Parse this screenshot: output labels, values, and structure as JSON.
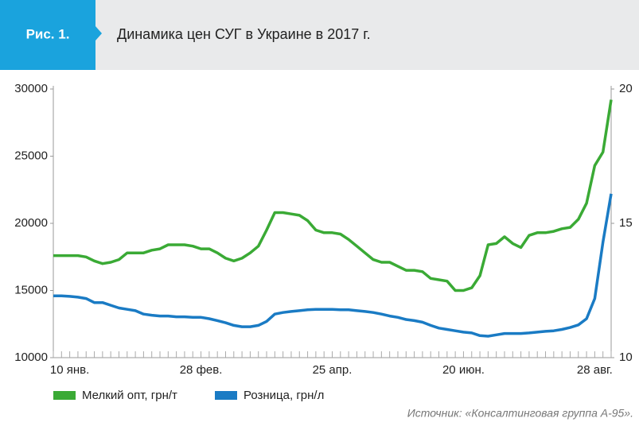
{
  "chart_data": {
    "type": "line",
    "figure_label": "Рис. 1.",
    "title": "Динамика цен СУГ в Украине в 2017 г.",
    "source": "Источник: «Консалтинговая группа А-95».",
    "categories": [
      null,
      null,
      "10 янв.",
      null,
      null,
      null,
      null,
      null,
      null,
      null,
      null,
      null,
      null,
      null,
      null,
      null,
      null,
      null,
      "28 фев.",
      null,
      null,
      null,
      null,
      null,
      null,
      null,
      null,
      null,
      null,
      null,
      null,
      null,
      null,
      null,
      "25 апр.",
      null,
      null,
      null,
      null,
      null,
      null,
      null,
      null,
      null,
      null,
      null,
      null,
      null,
      null,
      null,
      "20 июн.",
      null,
      null,
      null,
      null,
      null,
      null,
      null,
      null,
      null,
      null,
      null,
      null,
      null,
      null,
      null,
      "28 авг.",
      null,
      null
    ],
    "series": [
      {
        "name": "Мелкий опт, грн/т",
        "color": "#3aaa35",
        "axis": "y",
        "values": [
          17600,
          17600,
          17600,
          17600,
          17500,
          17200,
          17000,
          17100,
          17300,
          17800,
          17800,
          17800,
          18000,
          18100,
          18400,
          18400,
          18400,
          18300,
          18100,
          18100,
          17800,
          17400,
          17200,
          17400,
          17800,
          18300,
          19500,
          20800,
          20800,
          20700,
          20600,
          20200,
          19500,
          19300,
          19300,
          19200,
          18800,
          18300,
          17800,
          17300,
          17100,
          17100,
          16800,
          16500,
          16500,
          16400,
          15900,
          15800,
          15700,
          15000,
          15000,
          15200,
          16100,
          18400,
          18500,
          19000,
          18500,
          18200,
          19100,
          19300,
          19300,
          19400,
          19600,
          19700,
          20300,
          21500,
          24300,
          25300,
          29200
        ]
      },
      {
        "name": "Розница, грн/л",
        "color": "#1a7bc4",
        "axis": "y2",
        "values": [
          12.3,
          12.3,
          12.28,
          12.25,
          12.2,
          12.05,
          12.05,
          11.95,
          11.85,
          11.8,
          11.75,
          11.62,
          11.58,
          11.55,
          11.55,
          11.52,
          11.52,
          11.5,
          11.5,
          11.45,
          11.38,
          11.3,
          11.2,
          11.15,
          11.15,
          11.2,
          11.35,
          11.62,
          11.68,
          11.72,
          11.75,
          11.78,
          11.8,
          11.8,
          11.8,
          11.78,
          11.78,
          11.75,
          11.72,
          11.68,
          11.62,
          11.55,
          11.5,
          11.42,
          11.38,
          11.32,
          11.2,
          11.1,
          11.05,
          11.0,
          10.95,
          10.92,
          10.82,
          10.8,
          10.85,
          10.9,
          10.9,
          10.9,
          10.92,
          10.95,
          10.98,
          11.0,
          11.05,
          11.12,
          11.22,
          11.45,
          12.2,
          14.3,
          16.1
        ]
      }
    ],
    "ylim": [
      10000,
      30000
    ],
    "yticks": [
      10000,
      15000,
      20000,
      25000,
      30000
    ],
    "y2lim": [
      10,
      20
    ],
    "y2ticks": [
      10,
      15,
      20
    ],
    "grid": false,
    "legend": "bottom"
  }
}
